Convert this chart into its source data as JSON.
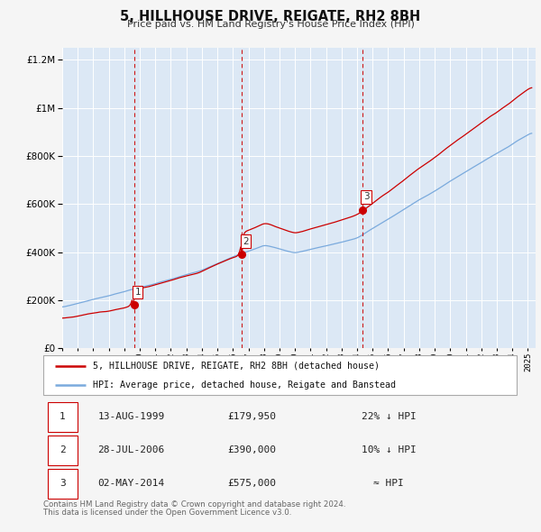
{
  "title": "5, HILLHOUSE DRIVE, REIGATE, RH2 8BH",
  "subtitle": "Price paid vs. HM Land Registry's House Price Index (HPI)",
  "legend_line1": "5, HILLHOUSE DRIVE, REIGATE, RH2 8BH (detached house)",
  "legend_line2": "HPI: Average price, detached house, Reigate and Banstead",
  "price_color": "#cc0000",
  "hpi_color": "#7aaadd",
  "fig_bg_color": "#f5f5f5",
  "plot_bg_color": "#dce8f5",
  "grid_color": "#ffffff",
  "transactions": [
    {
      "num": 1,
      "date": "13-AUG-1999",
      "price": 179950,
      "rel": "22% ↓ HPI",
      "year": 1999.62
    },
    {
      "num": 2,
      "date": "28-JUL-2006",
      "price": 390000,
      "rel": "10% ↓ HPI",
      "year": 2006.57
    },
    {
      "num": 3,
      "date": "02-MAY-2014",
      "price": 575000,
      "rel": "≈ HPI",
      "year": 2014.33
    }
  ],
  "footer_line1": "Contains HM Land Registry data © Crown copyright and database right 2024.",
  "footer_line2": "This data is licensed under the Open Government Licence v3.0.",
  "yticks": [
    0,
    200000,
    400000,
    600000,
    800000,
    1000000,
    1200000
  ],
  "xlim_start": 1995.0,
  "xlim_end": 2025.5,
  "ylim_max": 1250000
}
